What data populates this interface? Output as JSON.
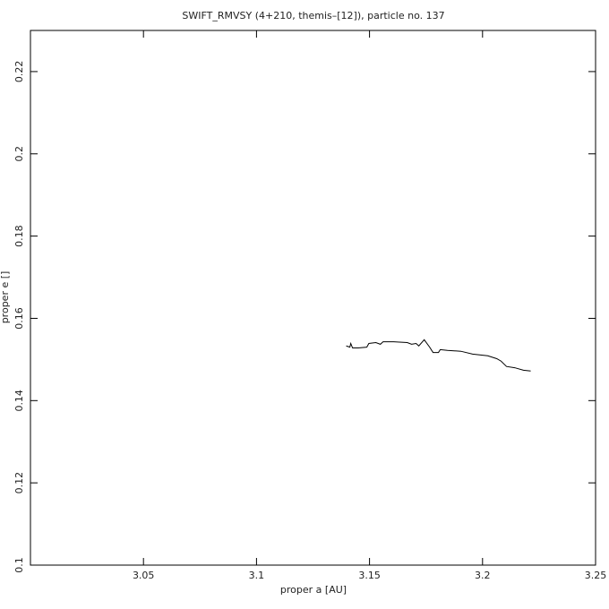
{
  "chart_data": {
    "type": "line",
    "title": "SWIFT_RMVSY (4+210, themis–[12]), particle no. 137",
    "x_label": "proper a [AU]",
    "y_label": "proper e []",
    "color": "#000000",
    "x": [
      3.1397,
      3.1413,
      3.1417,
      3.1425,
      3.145,
      3.1488,
      3.1497,
      3.1528,
      3.1548,
      3.156,
      3.1607,
      3.1667,
      3.1686,
      3.1706,
      3.1718,
      3.1742,
      3.1766,
      3.1781,
      3.1805,
      3.1813,
      3.1845,
      3.1904,
      3.1956,
      3.2023,
      3.2063,
      3.2082,
      3.2106,
      3.2142,
      3.2181,
      3.2213
    ],
    "values": [
      0.1533,
      0.153,
      0.1539,
      0.1528,
      0.1528,
      0.153,
      0.1539,
      0.1541,
      0.1537,
      0.1543,
      0.1543,
      0.1541,
      0.1537,
      0.1539,
      0.1533,
      0.1548,
      0.153,
      0.1517,
      0.1517,
      0.1524,
      0.1522,
      0.152,
      0.1513,
      0.1509,
      0.1502,
      0.1496,
      0.1483,
      0.148,
      0.1474,
      0.1472
    ],
    "xlim": [
      3.0,
      3.25
    ],
    "ylim": [
      0.1,
      0.23
    ],
    "xticks": [
      3.05,
      3.1,
      3.15,
      3.2,
      3.25
    ],
    "yticks": [
      0.1,
      0.12,
      0.14,
      0.16,
      0.18,
      0.2,
      0.22
    ]
  }
}
